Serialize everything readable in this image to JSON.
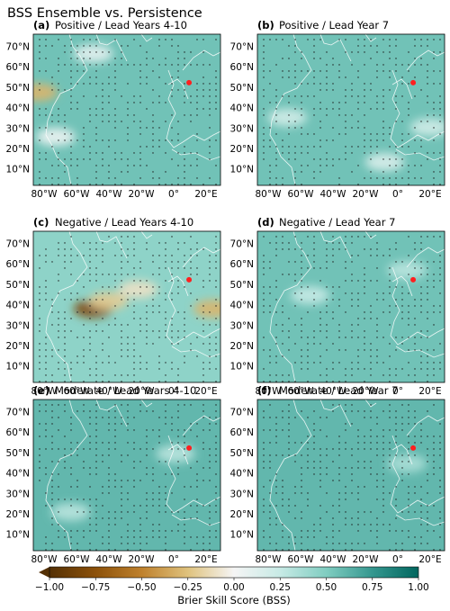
{
  "figure": {
    "title": "BSS Ensemble vs. Persistence"
  },
  "panels": [
    {
      "tag": "(a)",
      "label": "Positive / Lead Years 4-10"
    },
    {
      "tag": "(b)",
      "label": "Positive / Lead Year 7"
    },
    {
      "tag": "(c)",
      "label": "Negative / Lead Years 4-10"
    },
    {
      "tag": "(d)",
      "label": "Negative / Lead Year 7"
    },
    {
      "tag": "(e)",
      "label": "Moderate / Lead Years 4-10"
    },
    {
      "tag": "(f)",
      "label": "Moderate / Lead Year 7"
    }
  ],
  "axes": {
    "lat_ticks": [
      "70°N",
      "60°N",
      "50°N",
      "40°N",
      "30°N",
      "20°N",
      "10°N"
    ],
    "lon_ticks": [
      "80°W",
      "60°W",
      "40°W",
      "20°W",
      "0°",
      "20°E"
    ]
  },
  "colorbar": {
    "label": "Brier Skill Score (BSS)",
    "ticks": [
      "−1.00",
      "−0.75",
      "−0.50",
      "−0.25",
      "0.00",
      "0.25",
      "0.50",
      "0.75",
      "1.00"
    ],
    "range": [
      -1.0,
      1.0
    ],
    "colors": {
      "low": "#543005",
      "mid_low": "#dfc27d",
      "zero": "#f5f5f5",
      "mid_high": "#80cdc1",
      "high": "#01665e"
    }
  },
  "marker": {
    "color": "#ff1f1f",
    "description_point": "red dot over central Europe"
  },
  "chart_data": {
    "type": "heatmap",
    "variable": "Brier Skill Score (BSS)",
    "vrange": [
      -1.0,
      1.0
    ],
    "lon_range": [
      -95,
      30
    ],
    "lat_range": [
      0,
      78
    ],
    "marker_location": {
      "lon": 9,
      "lat": 53
    },
    "panels": [
      {
        "id": "a",
        "mean_bss": 0.55,
        "low_regions": [
          {
            "lon": -92,
            "lat": 48,
            "bss": -0.3
          },
          {
            "lon": -80,
            "lat": 25,
            "bss": 0.05
          },
          {
            "lon": -55,
            "lat": 68,
            "bss": 0.1
          }
        ]
      },
      {
        "id": "b",
        "mean_bss": 0.55,
        "low_regions": [
          {
            "lon": -75,
            "lat": 35,
            "bss": 0.2
          },
          {
            "lon": -10,
            "lat": 12,
            "bss": 0.15
          },
          {
            "lon": 20,
            "lat": 30,
            "bss": 0.2
          }
        ]
      },
      {
        "id": "c",
        "mean_bss": 0.45,
        "low_regions": [
          {
            "lon": -55,
            "lat": 38,
            "bss": -0.8
          },
          {
            "lon": -45,
            "lat": 42,
            "bss": -0.2
          },
          {
            "lon": -25,
            "lat": 48,
            "bss": -0.1
          },
          {
            "lon": 25,
            "lat": 38,
            "bss": -0.3
          }
        ]
      },
      {
        "id": "d",
        "mean_bss": 0.55,
        "low_regions": [
          {
            "lon": -60,
            "lat": 45,
            "bss": 0.25
          },
          {
            "lon": 5,
            "lat": 58,
            "bss": 0.3
          }
        ]
      },
      {
        "id": "e",
        "mean_bss": 0.6,
        "low_regions": [
          {
            "lon": -70,
            "lat": 20,
            "bss": 0.3
          },
          {
            "lon": 0,
            "lat": 50,
            "bss": 0.3
          }
        ]
      },
      {
        "id": "f",
        "mean_bss": 0.6,
        "low_regions": [
          {
            "lon": 5,
            "lat": 45,
            "bss": 0.35
          }
        ]
      }
    ]
  }
}
